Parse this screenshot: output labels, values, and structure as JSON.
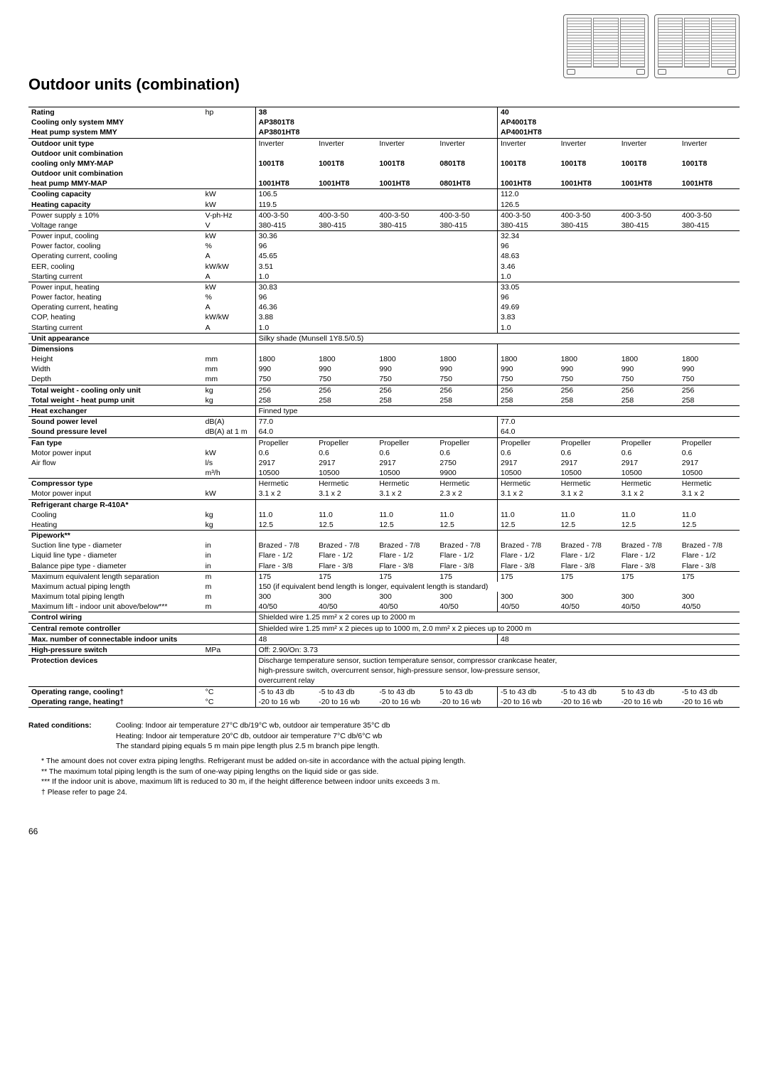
{
  "page_number": "66",
  "title": "Outdoor units (combination)",
  "groups": {
    "g1": "38",
    "g2": "40"
  },
  "rows": [
    {
      "label": "Rating",
      "unit": "hp",
      "bold": true,
      "tline": true,
      "g1": [
        "38",
        "",
        "",
        ""
      ],
      "g2": [
        "40",
        "",
        "",
        ""
      ],
      "g1merge": true,
      "g2merge": true,
      "groupbold": true
    },
    {
      "label": "Cooling only system MMY",
      "bold": true,
      "g1": [
        "AP3801T8",
        "",
        "",
        ""
      ],
      "g2": [
        "AP4001T8",
        "",
        "",
        ""
      ],
      "g1merge": true,
      "g2merge": true,
      "groupbold": true
    },
    {
      "label": "Heat pump system MMY",
      "bold": true,
      "g1": [
        "AP3801HT8",
        "",
        "",
        ""
      ],
      "g2": [
        "AP4001HT8",
        "",
        "",
        ""
      ],
      "g1merge": true,
      "g2merge": true,
      "groupbold": true
    },
    {
      "label": "Outdoor unit type",
      "bold": true,
      "tline": true,
      "g1": [
        "Inverter",
        "Inverter",
        "Inverter",
        "Inverter"
      ],
      "g2": [
        "Inverter",
        "Inverter",
        "Inverter",
        "Inverter"
      ]
    },
    {
      "label": "Outdoor unit combination",
      "bold": true,
      "g1": [
        "",
        "",
        "",
        ""
      ],
      "g2": [
        "",
        "",
        "",
        ""
      ]
    },
    {
      "label": "cooling only MMY-MAP",
      "bold": true,
      "g1": [
        "1001T8",
        "1001T8",
        "1001T8",
        "0801T8"
      ],
      "g2": [
        "1001T8",
        "1001T8",
        "1001T8",
        "1001T8"
      ],
      "groupbold": true
    },
    {
      "label": "Outdoor unit combination",
      "bold": true,
      "g1": [
        "",
        "",
        "",
        ""
      ],
      "g2": [
        "",
        "",
        "",
        ""
      ]
    },
    {
      "label": "heat pump MMY-MAP",
      "bold": true,
      "g1": [
        "1001HT8",
        "1001HT8",
        "1001HT8",
        "0801HT8"
      ],
      "g2": [
        "1001HT8",
        "1001HT8",
        "1001HT8",
        "1001HT8"
      ],
      "groupbold": true
    },
    {
      "label": "Cooling capacity",
      "unit": "kW",
      "bold": true,
      "tline": true,
      "g1": [
        "106.5",
        "",
        "",
        ""
      ],
      "g2": [
        "112.0",
        "",
        "",
        ""
      ]
    },
    {
      "label": "Heating capacity",
      "unit": "kW",
      "bold": true,
      "g1": [
        "119.5",
        "",
        "",
        ""
      ],
      "g2": [
        "126.5",
        "",
        "",
        ""
      ]
    },
    {
      "label": "Power supply ± 10%",
      "unit": "V-ph-Hz",
      "tline": true,
      "g1": [
        "400-3-50",
        "400-3-50",
        "400-3-50",
        "400-3-50"
      ],
      "g2": [
        "400-3-50",
        "400-3-50",
        "400-3-50",
        "400-3-50"
      ]
    },
    {
      "label": "Voltage range",
      "unit": "V",
      "g1": [
        "380-415",
        "380-415",
        "380-415",
        "380-415"
      ],
      "g2": [
        "380-415",
        "380-415",
        "380-415",
        "380-415"
      ]
    },
    {
      "label": "Power input, cooling",
      "unit": "kW",
      "tline": true,
      "g1": [
        "30.36",
        "",
        "",
        ""
      ],
      "g2": [
        "32.34",
        "",
        "",
        ""
      ]
    },
    {
      "label": "Power factor, cooling",
      "unit": "%",
      "g1": [
        "96",
        "",
        "",
        ""
      ],
      "g2": [
        "96",
        "",
        "",
        ""
      ]
    },
    {
      "label": "Operating current, cooling",
      "unit": "A",
      "g1": [
        "45.65",
        "",
        "",
        ""
      ],
      "g2": [
        "48.63",
        "",
        "",
        ""
      ]
    },
    {
      "label": "EER, cooling",
      "unit": "kW/kW",
      "g1": [
        "3.51",
        "",
        "",
        ""
      ],
      "g2": [
        "3.46",
        "",
        "",
        ""
      ]
    },
    {
      "label": "Starting current",
      "unit": "A",
      "g1": [
        "1.0",
        "",
        "",
        ""
      ],
      "g2": [
        "1.0",
        "",
        "",
        ""
      ]
    },
    {
      "label": "Power input, heating",
      "unit": "kW",
      "tline": true,
      "g1": [
        "30.83",
        "",
        "",
        ""
      ],
      "g2": [
        "33.05",
        "",
        "",
        ""
      ]
    },
    {
      "label": "Power factor, heating",
      "unit": "%",
      "g1": [
        "96",
        "",
        "",
        ""
      ],
      "g2": [
        "96",
        "",
        "",
        ""
      ]
    },
    {
      "label": "Operating current, heating",
      "unit": "A",
      "g1": [
        "46.36",
        "",
        "",
        ""
      ],
      "g2": [
        "49.69",
        "",
        "",
        ""
      ]
    },
    {
      "label": "COP, heating",
      "unit": "kW/kW",
      "g1": [
        "3.88",
        "",
        "",
        ""
      ],
      "g2": [
        "3.83",
        "",
        "",
        ""
      ]
    },
    {
      "label": "Starting current",
      "unit": "A",
      "g1": [
        "1.0",
        "",
        "",
        ""
      ],
      "g2": [
        "1.0",
        "",
        "",
        ""
      ]
    },
    {
      "label": "Unit appearance",
      "bold": true,
      "tline": true,
      "full": "Silky shade (Munsell 1Y8.5/0.5)"
    },
    {
      "label": "Dimensions",
      "bold": true,
      "tline": true,
      "g1": [
        "",
        "",
        "",
        ""
      ],
      "g2": [
        "",
        "",
        "",
        ""
      ]
    },
    {
      "label": "Height",
      "unit": "mm",
      "g1": [
        "1800",
        "1800",
        "1800",
        "1800"
      ],
      "g2": [
        "1800",
        "1800",
        "1800",
        "1800"
      ]
    },
    {
      "label": "Width",
      "unit": "mm",
      "g1": [
        "990",
        "990",
        "990",
        "990"
      ],
      "g2": [
        "990",
        "990",
        "990",
        "990"
      ]
    },
    {
      "label": "Depth",
      "unit": "mm",
      "g1": [
        "750",
        "750",
        "750",
        "750"
      ],
      "g2": [
        "750",
        "750",
        "750",
        "750"
      ]
    },
    {
      "label": "Total weight - cooling only unit",
      "unit": "kg",
      "bold": true,
      "tline": true,
      "g1": [
        "256",
        "256",
        "256",
        "256"
      ],
      "g2": [
        "256",
        "256",
        "256",
        "256"
      ]
    },
    {
      "label": "Total weight - heat pump unit",
      "unit": "kg",
      "bold": true,
      "g1": [
        "258",
        "258",
        "258",
        "258"
      ],
      "g2": [
        "258",
        "258",
        "258",
        "258"
      ]
    },
    {
      "label": "Heat exchanger",
      "bold": true,
      "tline": true,
      "full": "Finned type"
    },
    {
      "label": "Sound power level",
      "unit": "dB(A)",
      "bold": true,
      "tline": true,
      "g1": [
        "77.0",
        "",
        "",
        ""
      ],
      "g2": [
        "77.0",
        "",
        "",
        ""
      ]
    },
    {
      "label": "Sound pressure level",
      "unit": "dB(A) at 1 m",
      "bold": true,
      "g1": [
        "64.0",
        "",
        "",
        ""
      ],
      "g2": [
        "64.0",
        "",
        "",
        ""
      ]
    },
    {
      "label": "Fan type",
      "bold": true,
      "tline": true,
      "g1": [
        "Propeller",
        "Propeller",
        "Propeller",
        "Propeller"
      ],
      "g2": [
        "Propeller",
        "Propeller",
        "Propeller",
        "Propeller"
      ]
    },
    {
      "label": "Motor power input",
      "unit": "kW",
      "g1": [
        "0.6",
        "0.6",
        "0.6",
        "0.6"
      ],
      "g2": [
        "0.6",
        "0.6",
        "0.6",
        "0.6"
      ]
    },
    {
      "label": "Air flow",
      "unit": "l/s",
      "g1": [
        "2917",
        "2917",
        "2917",
        "2750"
      ],
      "g2": [
        "2917",
        "2917",
        "2917",
        "2917"
      ]
    },
    {
      "label": "",
      "unit": "m³/h",
      "g1": [
        "10500",
        "10500",
        "10500",
        "9900"
      ],
      "g2": [
        "10500",
        "10500",
        "10500",
        "10500"
      ]
    },
    {
      "label": "Compressor type",
      "bold": true,
      "tline": true,
      "g1": [
        "Hermetic",
        "Hermetic",
        "Hermetic",
        "Hermetic"
      ],
      "g2": [
        "Hermetic",
        "Hermetic",
        "Hermetic",
        "Hermetic"
      ]
    },
    {
      "label": "Motor power input",
      "unit": "kW",
      "g1": [
        "3.1 x 2",
        "3.1 x 2",
        "3.1 x 2",
        "2.3 x 2"
      ],
      "g2": [
        "3.1 x 2",
        "3.1 x 2",
        "3.1 x 2",
        "3.1 x 2"
      ]
    },
    {
      "label": "Refrigerant charge R-410A*",
      "bold": true,
      "tline": true,
      "g1": [
        "",
        "",
        "",
        ""
      ],
      "g2": [
        "",
        "",
        "",
        ""
      ]
    },
    {
      "label": "Cooling",
      "unit": "kg",
      "g1": [
        "11.0",
        "11.0",
        "11.0",
        "11.0"
      ],
      "g2": [
        "11.0",
        "11.0",
        "11.0",
        "11.0"
      ]
    },
    {
      "label": "Heating",
      "unit": "kg",
      "g1": [
        "12.5",
        "12.5",
        "12.5",
        "12.5"
      ],
      "g2": [
        "12.5",
        "12.5",
        "12.5",
        "12.5"
      ]
    },
    {
      "label": "Pipework**",
      "bold": true,
      "tline": true,
      "g1": [
        "",
        "",
        "",
        ""
      ],
      "g2": [
        "",
        "",
        "",
        ""
      ]
    },
    {
      "label": "Suction line type - diameter",
      "unit": "in",
      "g1": [
        "Brazed - 7/8",
        "Brazed - 7/8",
        "Brazed - 7/8",
        "Brazed - 7/8"
      ],
      "g2": [
        "Brazed - 7/8",
        "Brazed - 7/8",
        "Brazed - 7/8",
        "Brazed - 7/8"
      ]
    },
    {
      "label": "Liquid line type - diameter",
      "unit": "in",
      "g1": [
        "Flare - 1/2",
        "Flare - 1/2",
        "Flare - 1/2",
        "Flare - 1/2"
      ],
      "g2": [
        "Flare - 1/2",
        "Flare - 1/2",
        "Flare - 1/2",
        "Flare - 1/2"
      ]
    },
    {
      "label": "Balance pipe type - diameter",
      "unit": "in",
      "g1": [
        "Flare - 3/8",
        "Flare - 3/8",
        "Flare - 3/8",
        "Flare - 3/8"
      ],
      "g2": [
        "Flare - 3/8",
        "Flare - 3/8",
        "Flare - 3/8",
        "Flare - 3/8"
      ]
    },
    {
      "label": "Maximum equivalent length separation",
      "unit": "m",
      "tline": true,
      "g1": [
        "175",
        "175",
        "175",
        "175"
      ],
      "g2": [
        "175",
        "175",
        "175",
        "175"
      ]
    },
    {
      "label": "Maximum actual piping length",
      "unit": "m",
      "full": "150 (if equivalent bend length is longer, equivalent length is standard)"
    },
    {
      "label": "Maximum total piping length",
      "unit": "m",
      "g1": [
        "300",
        "300",
        "300",
        "300"
      ],
      "g2": [
        "300",
        "300",
        "300",
        "300"
      ]
    },
    {
      "label": "Maximum lift - indoor unit above/below***",
      "unit": "m",
      "g1": [
        "40/50",
        "40/50",
        "40/50",
        "40/50"
      ],
      "g2": [
        "40/50",
        "40/50",
        "40/50",
        "40/50"
      ]
    },
    {
      "label": "Control wiring",
      "bold": true,
      "tline": true,
      "full": "Shielded wire 1.25 mm² x 2 cores up to 2000 m"
    },
    {
      "label": "Central remote controller",
      "bold": true,
      "tline": true,
      "full": "Shielded wire 1.25 mm² x 2 pieces up to 1000 m, 2.0 mm² x 2 pieces up to 2000 m"
    },
    {
      "label": "Max. number of connectable indoor units",
      "bold": true,
      "tline": true,
      "g1": [
        "48",
        "",
        "",
        ""
      ],
      "g2": [
        "48",
        "",
        "",
        ""
      ]
    },
    {
      "label": "High-pressure switch",
      "unit": "MPa",
      "bold": true,
      "tline": true,
      "full": "Off: 2.90/On: 3.73"
    },
    {
      "label": "Protection devices",
      "bold": true,
      "tline": true,
      "full": "Discharge temperature sensor, suction temperature sensor, compressor crankcase heater,"
    },
    {
      "label": "",
      "full": "high-pressure switch, overcurrent sensor, high-pressure sensor, low-pressure sensor,"
    },
    {
      "label": "",
      "full": "overcurrent relay"
    },
    {
      "label": "Operating range, cooling†",
      "unit": "°C",
      "bold": true,
      "tline": true,
      "g1": [
        "-5 to 43 db",
        "-5 to 43 db",
        "-5 to 43 db",
        "5 to 43 db"
      ],
      "g2": [
        "-5 to 43 db",
        "-5 to 43 db",
        "5 to 43 db",
        "-5 to 43 db"
      ]
    },
    {
      "label": "Operating range, heating†",
      "unit": "°C",
      "bold": true,
      "g1": [
        "-20 to 16 wb",
        "-20 to 16 wb",
        "-20 to 16 wb",
        "-20 to 16 wb"
      ],
      "g2": [
        "-20 to 16 wb",
        "-20 to 16 wb",
        "-20 to 16 wb",
        "-20 to 16 wb"
      ],
      "bline": true
    }
  ],
  "footnotes": {
    "lead_label": "Rated conditions:",
    "lead_lines": [
      "Cooling: Indoor air temperature 27°C db/19°C wb, outdoor air temperature 35°C db",
      "Heating: Indoor air temperature 20°C db, outdoor air temperature 7°C db/6°C wb",
      "The standard piping equals 5 m main pipe length plus 2.5 m branch pipe length."
    ],
    "items": [
      {
        "mark": "*",
        "text": "The amount does not cover extra piping lengths. Refrigerant must be added on-site in accordance with the actual piping length."
      },
      {
        "mark": "**",
        "text": "The maximum total piping length is the sum of one-way piping lengths on the liquid side or gas side."
      },
      {
        "mark": "***",
        "text": "If the indoor unit is above, maximum lift is reduced to 30 m, if the height difference between indoor units exceeds 3 m."
      },
      {
        "mark": "†",
        "text": "Please refer to page 24."
      }
    ]
  }
}
